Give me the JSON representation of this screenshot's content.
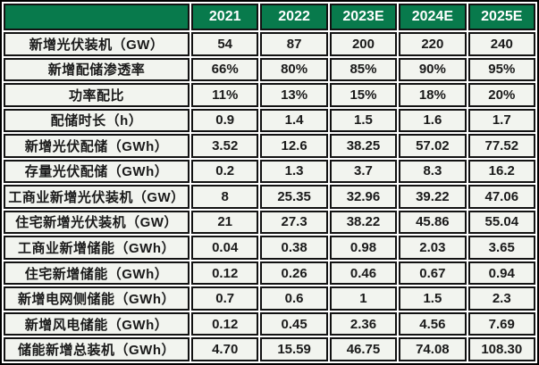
{
  "colors": {
    "header_bg": "#087A4C",
    "header_text": "#FFFFFF",
    "cell_bg": "#F2F4EF",
    "cell_text": "#1A1A1A",
    "border": "#121212"
  },
  "chart_data": {
    "type": "table",
    "title": "",
    "columns": [
      "",
      "2021",
      "2022",
      "2023E",
      "2024E",
      "2025E"
    ],
    "rows": [
      {
        "label": "新增光伏装机（GW）",
        "values": [
          "54",
          "87",
          "200",
          "220",
          "240"
        ]
      },
      {
        "label": "新增配储渗透率",
        "values": [
          "66%",
          "80%",
          "85%",
          "90%",
          "95%"
        ]
      },
      {
        "label": "功率配比",
        "values": [
          "11%",
          "13%",
          "15%",
          "18%",
          "20%"
        ]
      },
      {
        "label": "配储时长（h）",
        "values": [
          "0.9",
          "1.4",
          "1.5",
          "1.6",
          "1.7"
        ]
      },
      {
        "label": "新增光伏配储（GWh）",
        "values": [
          "3.52",
          "12.6",
          "38.25",
          "57.02",
          "77.52"
        ]
      },
      {
        "label": "存量光伏配储（GWh）",
        "values": [
          "0.2",
          "1.3",
          "3.7",
          "8.3",
          "16.2"
        ]
      },
      {
        "label": "工商业新增光伏装机（GW）",
        "values": [
          "8",
          "25.35",
          "32.96",
          "39.22",
          "47.06"
        ]
      },
      {
        "label": "住宅新增光伏装机（GW）",
        "values": [
          "21",
          "27.3",
          "38.22",
          "45.86",
          "55.04"
        ]
      },
      {
        "label": "工商业新增储能（GWh）",
        "values": [
          "0.04",
          "0.38",
          "0.98",
          "2.03",
          "3.65"
        ]
      },
      {
        "label": "住宅新增储能（GWh）",
        "values": [
          "0.12",
          "0.26",
          "0.46",
          "0.67",
          "0.94"
        ]
      },
      {
        "label": "新增电网侧储能（GWh）",
        "values": [
          "0.7",
          "0.6",
          "1",
          "1.5",
          "2.3"
        ]
      },
      {
        "label": "新增风电储能（GWh）",
        "values": [
          "0.12",
          "0.45",
          "2.36",
          "4.56",
          "7.69"
        ]
      },
      {
        "label": "储能新增总装机（GWh）",
        "values": [
          "4.70",
          "15.59",
          "46.75",
          "74.08",
          "108.30"
        ]
      }
    ]
  }
}
